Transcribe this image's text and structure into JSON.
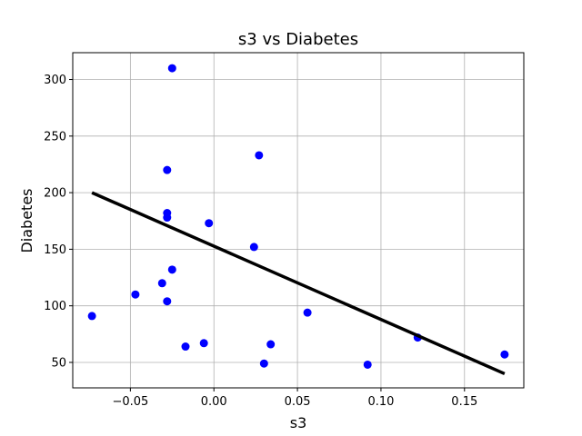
{
  "chart_data": {
    "type": "scatter",
    "title": "s3 vs Diabetes",
    "xlabel": "s3",
    "ylabel": "Diabetes",
    "xlim": [
      -0.0845,
      0.1855
    ],
    "ylim": [
      27.5,
      323.7
    ],
    "xticks": [
      -0.05,
      0.0,
      0.05,
      0.1,
      0.15
    ],
    "xtick_labels": [
      "−0.05",
      "0.00",
      "0.05",
      "0.10",
      "0.15"
    ],
    "yticks": [
      50,
      100,
      150,
      200,
      250,
      300
    ],
    "ytick_labels": [
      "50",
      "100",
      "150",
      "200",
      "250",
      "300"
    ],
    "grid": true,
    "point_color": "#0000ff",
    "line_color": "#000000",
    "series": [
      {
        "type": "scatter",
        "points": [
          {
            "x": -0.025,
            "y": 310
          },
          {
            "x": -0.028,
            "y": 220
          },
          {
            "x": 0.027,
            "y": 233
          },
          {
            "x": -0.028,
            "y": 182
          },
          {
            "x": -0.028,
            "y": 178
          },
          {
            "x": -0.003,
            "y": 173
          },
          {
            "x": 0.024,
            "y": 152
          },
          {
            "x": -0.025,
            "y": 132
          },
          {
            "x": -0.031,
            "y": 120
          },
          {
            "x": -0.047,
            "y": 110
          },
          {
            "x": -0.028,
            "y": 104
          },
          {
            "x": -0.073,
            "y": 91
          },
          {
            "x": 0.056,
            "y": 94
          },
          {
            "x": 0.122,
            "y": 72
          },
          {
            "x": -0.006,
            "y": 67
          },
          {
            "x": -0.017,
            "y": 64
          },
          {
            "x": 0.034,
            "y": 66
          },
          {
            "x": 0.03,
            "y": 49
          },
          {
            "x": 0.092,
            "y": 48
          },
          {
            "x": 0.174,
            "y": 57
          }
        ]
      },
      {
        "type": "line",
        "points": [
          {
            "x": -0.073,
            "y": 200
          },
          {
            "x": 0.174,
            "y": 40
          }
        ]
      }
    ]
  }
}
